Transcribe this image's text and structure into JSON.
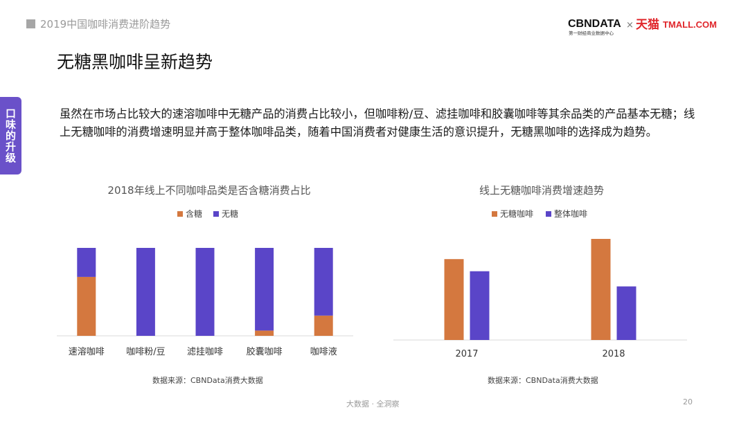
{
  "header": {
    "report_title": "2019中国咖啡消费进阶趋势",
    "logo_cbn": "CBNDATA",
    "logo_cbn_sub": "第一财经商业数据中心",
    "logo_x": "×",
    "logo_tmall_cn": "天猫",
    "logo_tmall_en": "TMALL.COM"
  },
  "slide": {
    "title": "无糖黑咖啡呈新趋势",
    "side_tab": "口味的升级",
    "body": "虽然在市场占比较大的速溶咖啡中无糖产品的消费占比较小，但咖啡粉/豆、滤挂咖啡和胶囊咖啡等其余品类的产品基本无糖；线上无糖咖啡的消费增速明显并高于整体咖啡品类，随着中国消费者对健康生活的意识提升，无糖黑咖啡的选择成为趋势。"
  },
  "colors": {
    "orange": "#d4783f",
    "purple": "#5a45c8",
    "axis": "#d9d9d9",
    "text": "#333333"
  },
  "chart_data": [
    {
      "type": "bar",
      "stacked": true,
      "title": "2018年线上不同咖啡品类是否含糖消费占比",
      "categories": [
        "速溶咖啡",
        "咖啡粉/豆",
        "滤挂咖啡",
        "胶囊咖啡",
        "咖啡液"
      ],
      "series": [
        {
          "name": "含糖",
          "color": "#d4783f",
          "values": [
            67,
            0,
            0,
            6,
            23
          ]
        },
        {
          "name": "无糖",
          "color": "#5a45c8",
          "values": [
            33,
            100,
            100,
            94,
            77
          ]
        }
      ],
      "ylim": [
        0,
        100
      ],
      "legend": "top"
    },
    {
      "type": "bar",
      "title": "线上无糖咖啡消费增速趋势",
      "categories": [
        "2017",
        "2018"
      ],
      "series": [
        {
          "name": "无糖咖啡",
          "color": "#d4783f",
          "values": [
            80,
            100
          ]
        },
        {
          "name": "整体咖啡",
          "color": "#5a45c8",
          "values": [
            68,
            53
          ]
        }
      ],
      "ylim": [
        0,
        100
      ],
      "legend": "top"
    }
  ],
  "sources": {
    "left": "数据来源：CBNData消费大数据",
    "right": "数据来源：CBNData消费大数据"
  },
  "footer": {
    "text": "大数据 · 全洞察",
    "page": "20"
  }
}
